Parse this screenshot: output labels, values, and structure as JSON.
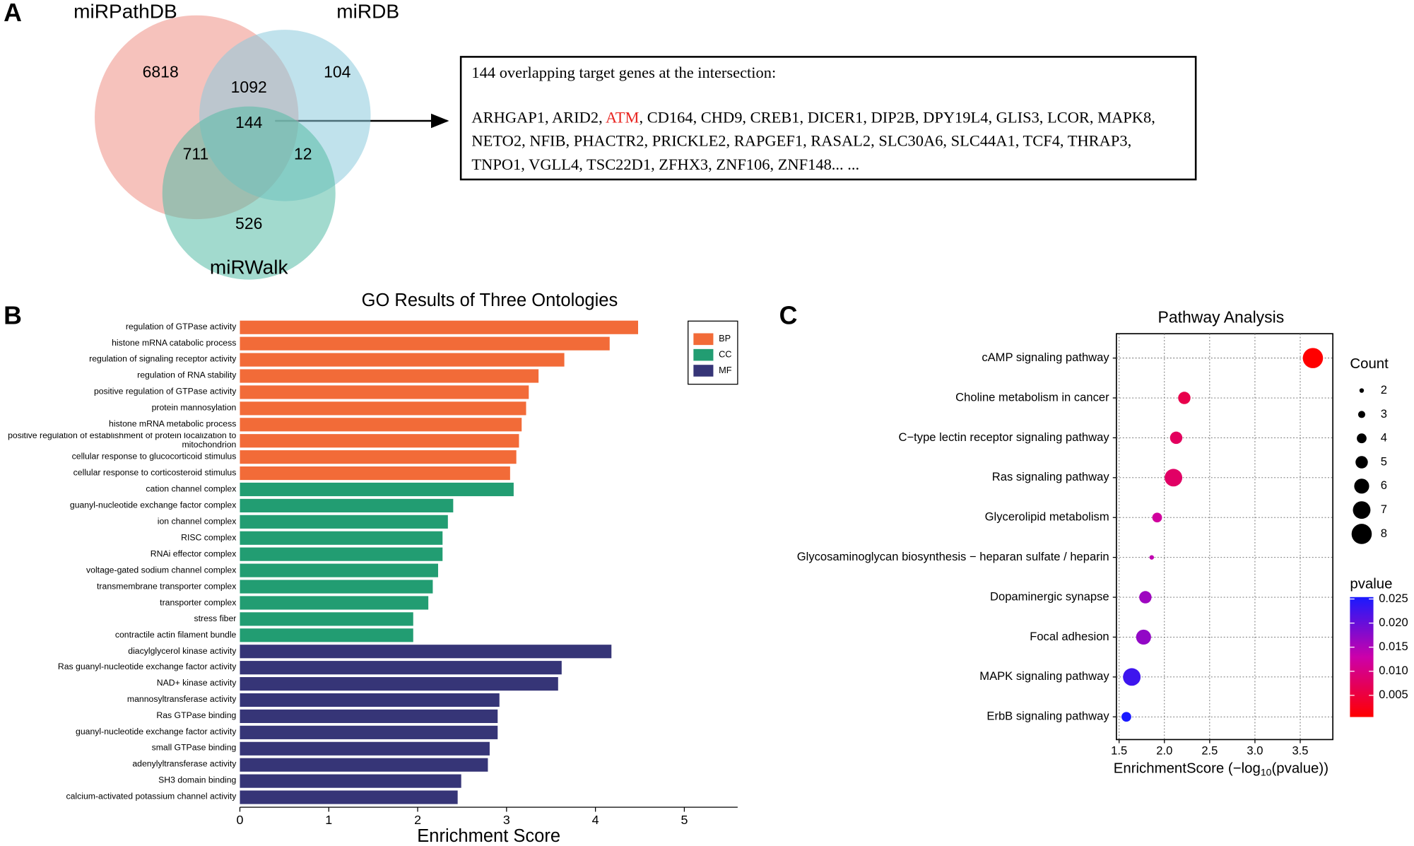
{
  "panels": [
    "A",
    "B",
    "C"
  ],
  "chart_data": [
    {
      "type": "venn",
      "sets": [
        {
          "name": "miRPathDB",
          "color": "#ef8f85"
        },
        {
          "name": "miRDB",
          "color": "#8ccbdd"
        },
        {
          "name": "miRWalk",
          "color": "#55bba6"
        }
      ],
      "values": [
        6818,
        1092,
        104,
        144,
        711,
        12,
        526
      ],
      "annotation": {
        "title": "144 overlapping target genes at the intersection:",
        "text_parts": [
          "ARHGAP1, ARID2, ",
          "ATM",
          ", CD164, CHD9, CREB1, DICER1, DIP2B, DPY19L4, GLIS3, LCOR, MAPK8, NETO2, NFIB, PHACTR2,  PRICKLE2, RAPGEF1, RASAL2, SLC30A6, SLC44A1, TCF4, THRAP3, TNPO1, VGLL4, TSC22D1, ZFHX3, ZNF106, ZNF148... ..."
        ],
        "highlight_part": 1,
        "highlight_color": "#e8231f"
      }
    },
    {
      "type": "hbar",
      "title": "GO Results of Three Ontologies",
      "x_label": "Enrichment Score",
      "xlim": [
        0,
        5.6
      ],
      "xticks": [
        0,
        1,
        2,
        3,
        4,
        5
      ],
      "legend": "top-right",
      "series": [
        {
          "name": "BP",
          "color": "#f26b38",
          "categories": [
            "regulation of GTPase activity",
            "histone mRNA catabolic process",
            "regulation of signaling receptor activity",
            "regulation of RNA stability",
            "positive regulation of GTPase activity",
            "protein mannosylation",
            "histone mRNA metabolic process",
            "positive regulation of establishment of protein localization to mitochondrion",
            "cellular response to glucocorticoid stimulus",
            "cellular response to corticosteroid stimulus"
          ],
          "values": [
            4.48,
            4.16,
            3.65,
            3.36,
            3.25,
            3.22,
            3.17,
            3.14,
            3.11,
            3.04
          ]
        },
        {
          "name": "CC",
          "color": "#229d72",
          "categories": [
            "cation channel complex",
            "guanyl-nucleotide exchange factor complex",
            "ion channel complex",
            "RISC complex",
            "RNAi effector complex",
            "voltage-gated sodium channel complex",
            "transmembrane transporter complex",
            "transporter complex",
            "stress fiber",
            "contractile actin filament bundle"
          ],
          "values": [
            3.08,
            2.4,
            2.34,
            2.28,
            2.28,
            2.23,
            2.17,
            2.12,
            1.95,
            1.95
          ]
        },
        {
          "name": "MF",
          "color": "#363577",
          "categories": [
            "diacylglycerol kinase activity",
            "Ras guanyl-nucleotide exchange factor activity",
            "NAD+ kinase activity",
            "mannosyltransferase activity",
            "Ras GTPase binding",
            "guanyl-nucleotide exchange factor activity",
            "small GTPase binding",
            "adenylyltransferase activity",
            "SH3 domain binding",
            "calcium-activated potassium channel activity"
          ],
          "values": [
            4.18,
            3.62,
            3.58,
            2.92,
            2.9,
            2.9,
            2.81,
            2.79,
            2.49,
            2.45
          ]
        }
      ]
    },
    {
      "type": "dot",
      "title": "Pathway Analysis",
      "x_label": "EnrichmentScore (−log",
      "x_label_sub": "10",
      "x_label_end": "(pvalue))",
      "xlim": [
        1.47,
        3.86
      ],
      "xticks": [
        1.5,
        {
          "value": 2,
          "label": "2.0"
        },
        2.5,
        {
          "value": 3,
          "label": "3.0"
        },
        3.5
      ],
      "grid": true,
      "categories": [
        "cAMP signaling pathway",
        "Choline metabolism in cancer",
        "C−type lectin receptor signaling pathway",
        "Ras signaling pathway",
        "Glycerolipid metabolism",
        "Glycosaminoglycan biosynthesis − heparan sulfate / heparin",
        "Dopaminergic synapse",
        "Focal adhesion",
        "MAPK signaling pathway",
        "ErbB signaling pathway"
      ],
      "values": [
        3.64,
        2.22,
        2.13,
        2.1,
        1.92,
        1.86,
        1.79,
        1.77,
        1.64,
        1.58
      ],
      "sizes": [
        8,
        5,
        5,
        7,
        4,
        2,
        5,
        6,
        7,
        4
      ],
      "pvalues": [
        0.00023,
        0.006,
        0.0074,
        0.0079,
        0.012,
        0.0138,
        0.0162,
        0.017,
        0.0229,
        0.0263
      ],
      "size_legend": {
        "title": "Count",
        "values": [
          2,
          3,
          4,
          5,
          6,
          7,
          8
        ]
      },
      "color_legend": {
        "title": "pvalue",
        "clim": [
          0.0005,
          0.0254
        ],
        "colormap": [
          "#ff0000",
          "#cc00aa",
          "#1a1aff"
        ],
        "ticks": [
          0.005,
          {
            "value": 0.01,
            "label": "0.010"
          },
          0.015,
          {
            "value": 0.02,
            "label": "0.020"
          },
          0.025
        ]
      }
    }
  ]
}
